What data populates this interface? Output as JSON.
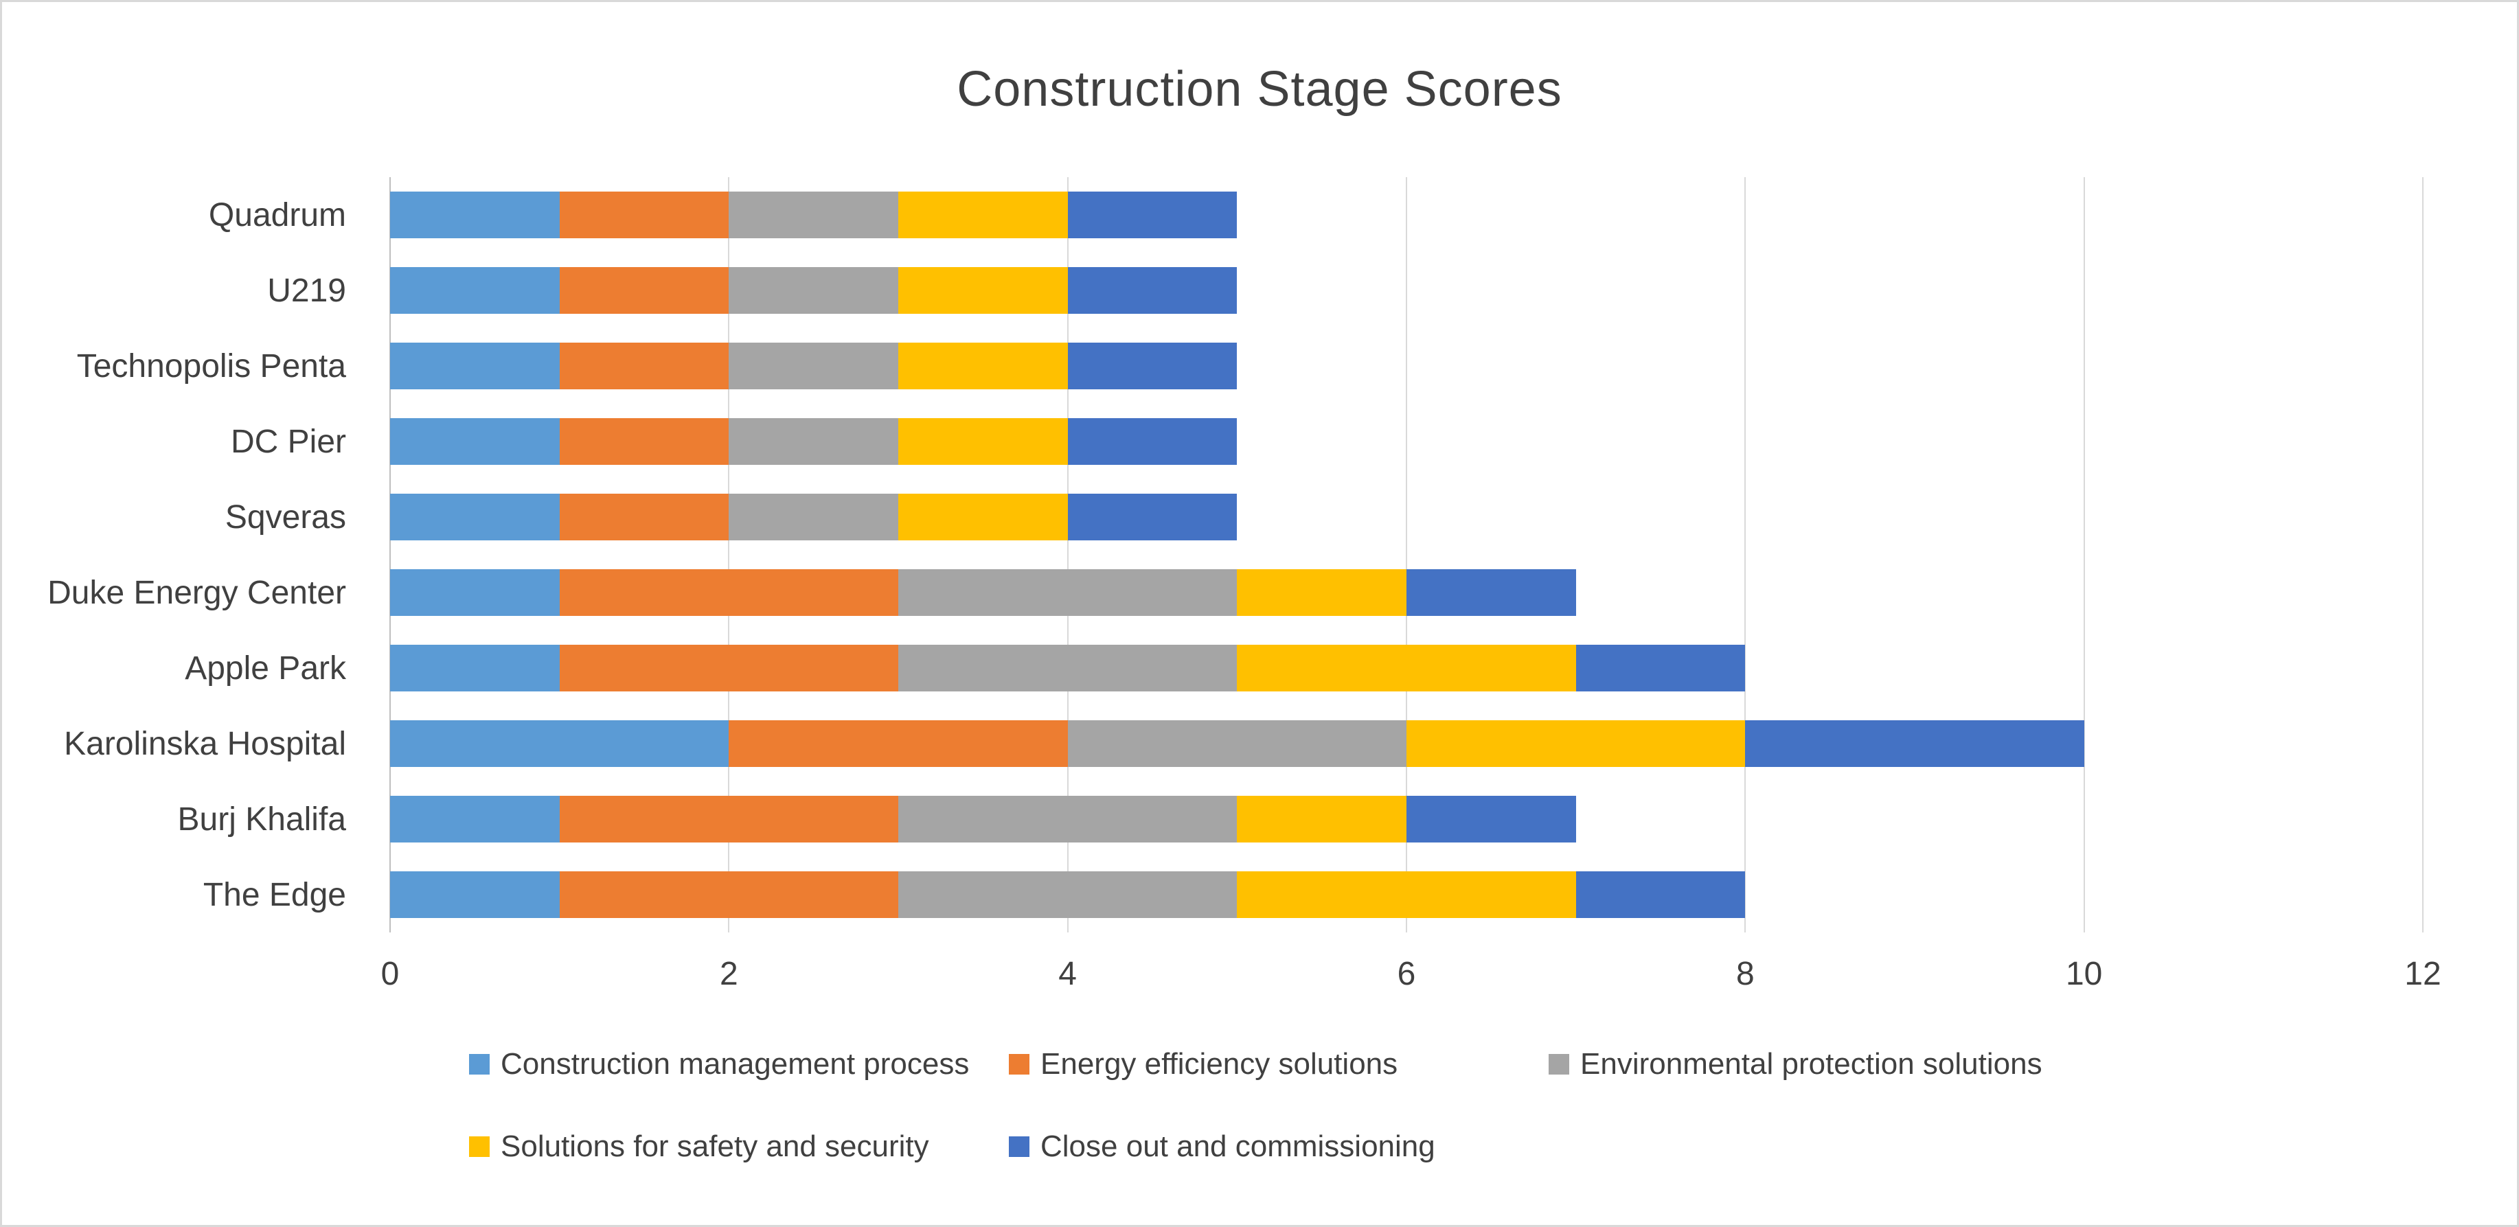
{
  "chart_data": {
    "type": "bar",
    "orientation": "horizontal",
    "stacked": true,
    "title": "Construction Stage Scores",
    "categories": [
      "Quadrum",
      "U219",
      "Technopolis Penta",
      "DC Pier",
      "Sqveras",
      "Duke Energy Center",
      "Apple Park",
      "Karolinska Hospital",
      "Burj Khalifa",
      "The Edge"
    ],
    "series": [
      {
        "name": "Construction management process",
        "color": "#5B9BD5",
        "values": [
          1,
          1,
          1,
          1,
          1,
          1,
          1,
          2,
          1,
          1
        ]
      },
      {
        "name": "Energy efficiency solutions",
        "color": "#ED7D31",
        "values": [
          1,
          1,
          1,
          1,
          1,
          2,
          2,
          2,
          2,
          2
        ]
      },
      {
        "name": "Environmental protection solutions",
        "color": "#A5A5A5",
        "values": [
          1,
          1,
          1,
          1,
          1,
          2,
          2,
          2,
          2,
          2
        ]
      },
      {
        "name": "Solutions for safety and security",
        "color": "#FFC000",
        "values": [
          1,
          1,
          1,
          1,
          1,
          1,
          2,
          2,
          1,
          2
        ]
      },
      {
        "name": "Close out and commissioning",
        "color": "#4472C4",
        "values": [
          1,
          1,
          1,
          1,
          1,
          1,
          1,
          2,
          1,
          1
        ]
      }
    ],
    "totals": [
      5,
      5,
      5,
      5,
      5,
      7,
      8,
      10,
      7,
      8
    ],
    "x_ticks": [
      "0",
      "2",
      "4",
      "6",
      "8",
      "10",
      "12"
    ],
    "xlim": [
      0,
      12
    ],
    "grid": "vertical-only",
    "legend_position": "bottom-left",
    "legend_rows": [
      [
        0,
        1,
        2
      ],
      [
        3,
        4
      ]
    ]
  },
  "style": {
    "gridline_color": "#D9D9D9",
    "axis_line_color": "#BFBFBF",
    "text_color": "#404040",
    "background": "#FFFFFF",
    "frame_border_color": "#D9D9D9"
  }
}
